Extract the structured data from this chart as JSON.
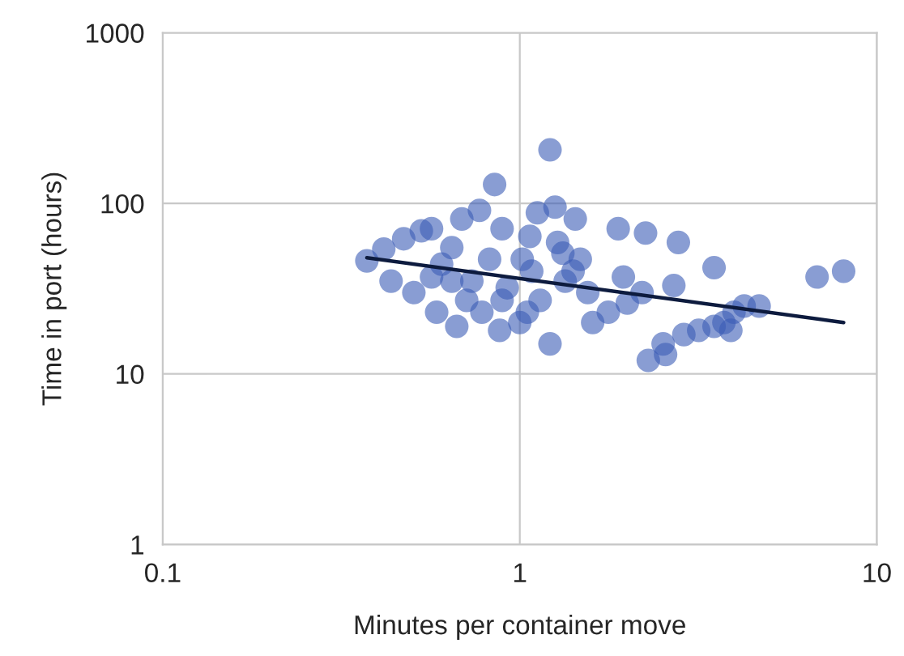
{
  "chart_data": {
    "type": "scatter",
    "xlabel": "Minutes per container move",
    "ylabel": "Time in port (hours)",
    "log": "xy",
    "xlim": [
      0.1,
      10
    ],
    "xticks": [
      0.1,
      1,
      10
    ],
    "ylim": [
      1,
      1000
    ],
    "yticks": [
      1,
      10,
      100,
      1000
    ],
    "grid": true,
    "marker": "circle",
    "series": [
      {
        "color": "#3a5bb5",
        "x": [
          0.373,
          0.416,
          0.436,
          0.473,
          0.505,
          0.53,
          0.566,
          0.585,
          0.604,
          0.645,
          0.666,
          0.688,
          0.734,
          0.771,
          0.783,
          0.823,
          0.85,
          0.878,
          0.892,
          0.922,
          1.0,
          1.016,
          1.067,
          1.12,
          1.14,
          1.215,
          1.215,
          1.255,
          1.276,
          1.34,
          1.43,
          1.477,
          1.55,
          1.6,
          1.77,
          1.886,
          1.95,
          2.0,
          2.2,
          2.25,
          2.29,
          2.52,
          2.56,
          2.7,
          2.78,
          2.88,
          3.17,
          3.5,
          3.5,
          3.73,
          3.9,
          3.98,
          4.25,
          4.68,
          6.8,
          8.07,
          0.645,
          0.71,
          0.892,
          1.08,
          1.32,
          1.41,
          0.566,
          1.05
        ],
        "values": [
          46,
          54,
          35,
          62,
          30,
          69,
          71,
          23,
          44,
          55,
          19,
          81,
          35,
          91,
          23,
          47,
          129,
          18,
          71,
          32,
          20,
          47,
          64,
          88,
          27,
          206,
          15,
          95,
          59,
          35,
          81,
          47,
          30,
          20,
          23,
          71,
          37,
          26,
          30,
          67,
          12,
          15,
          13,
          33,
          59,
          17,
          18,
          42,
          19,
          20,
          18,
          23,
          25,
          25,
          37,
          40,
          35,
          27,
          27,
          40,
          51,
          40,
          37,
          23
        ]
      },
      {
        "type": "line",
        "color": "#0d1b3e",
        "marker": "none",
        "x": [
          0.373,
          8.07
        ],
        "values": [
          48,
          20
        ]
      }
    ]
  }
}
